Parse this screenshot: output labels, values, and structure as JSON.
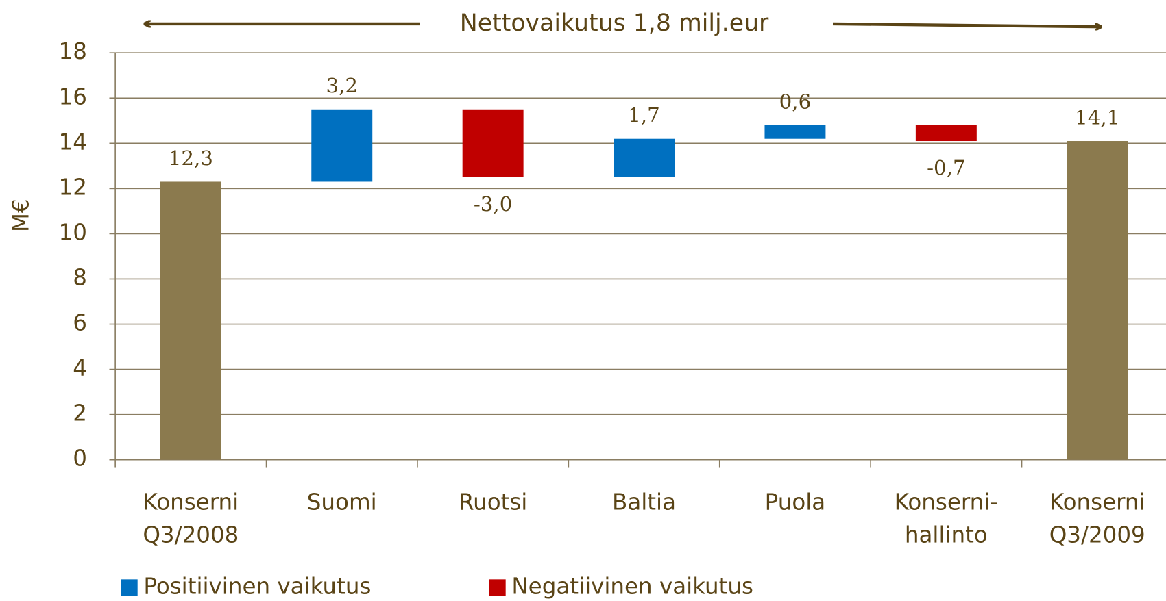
{
  "chart_data": {
    "type": "waterfall",
    "annotation": "Nettovaikutus 1,8 milj.eur",
    "y_label": "M€",
    "categories": [
      "Konserni\nQ3/2008",
      "Suomi",
      "Ruotsi",
      "Baltia",
      "Puola",
      "Konserni-\nhallinto",
      "Konserni\nQ3/2009"
    ],
    "values": [
      12.3,
      3.2,
      -3.0,
      1.7,
      0.6,
      -0.7,
      14.1
    ],
    "value_labels": [
      "12,3",
      "3,2",
      "-3,0",
      "1,7",
      "0,6",
      "-0,7",
      "14,1"
    ],
    "total_color": "#8b7a4e",
    "series": [
      {
        "name": "Positiivinen vaikutus",
        "color": "#0070c0"
      },
      {
        "name": "Negatiivinen vaikutus",
        "color": "#c00000"
      }
    ],
    "ylim": [
      0,
      18
    ],
    "yticks": [
      0,
      2,
      4,
      6,
      8,
      10,
      12,
      14,
      16,
      18
    ],
    "grid": true
  }
}
